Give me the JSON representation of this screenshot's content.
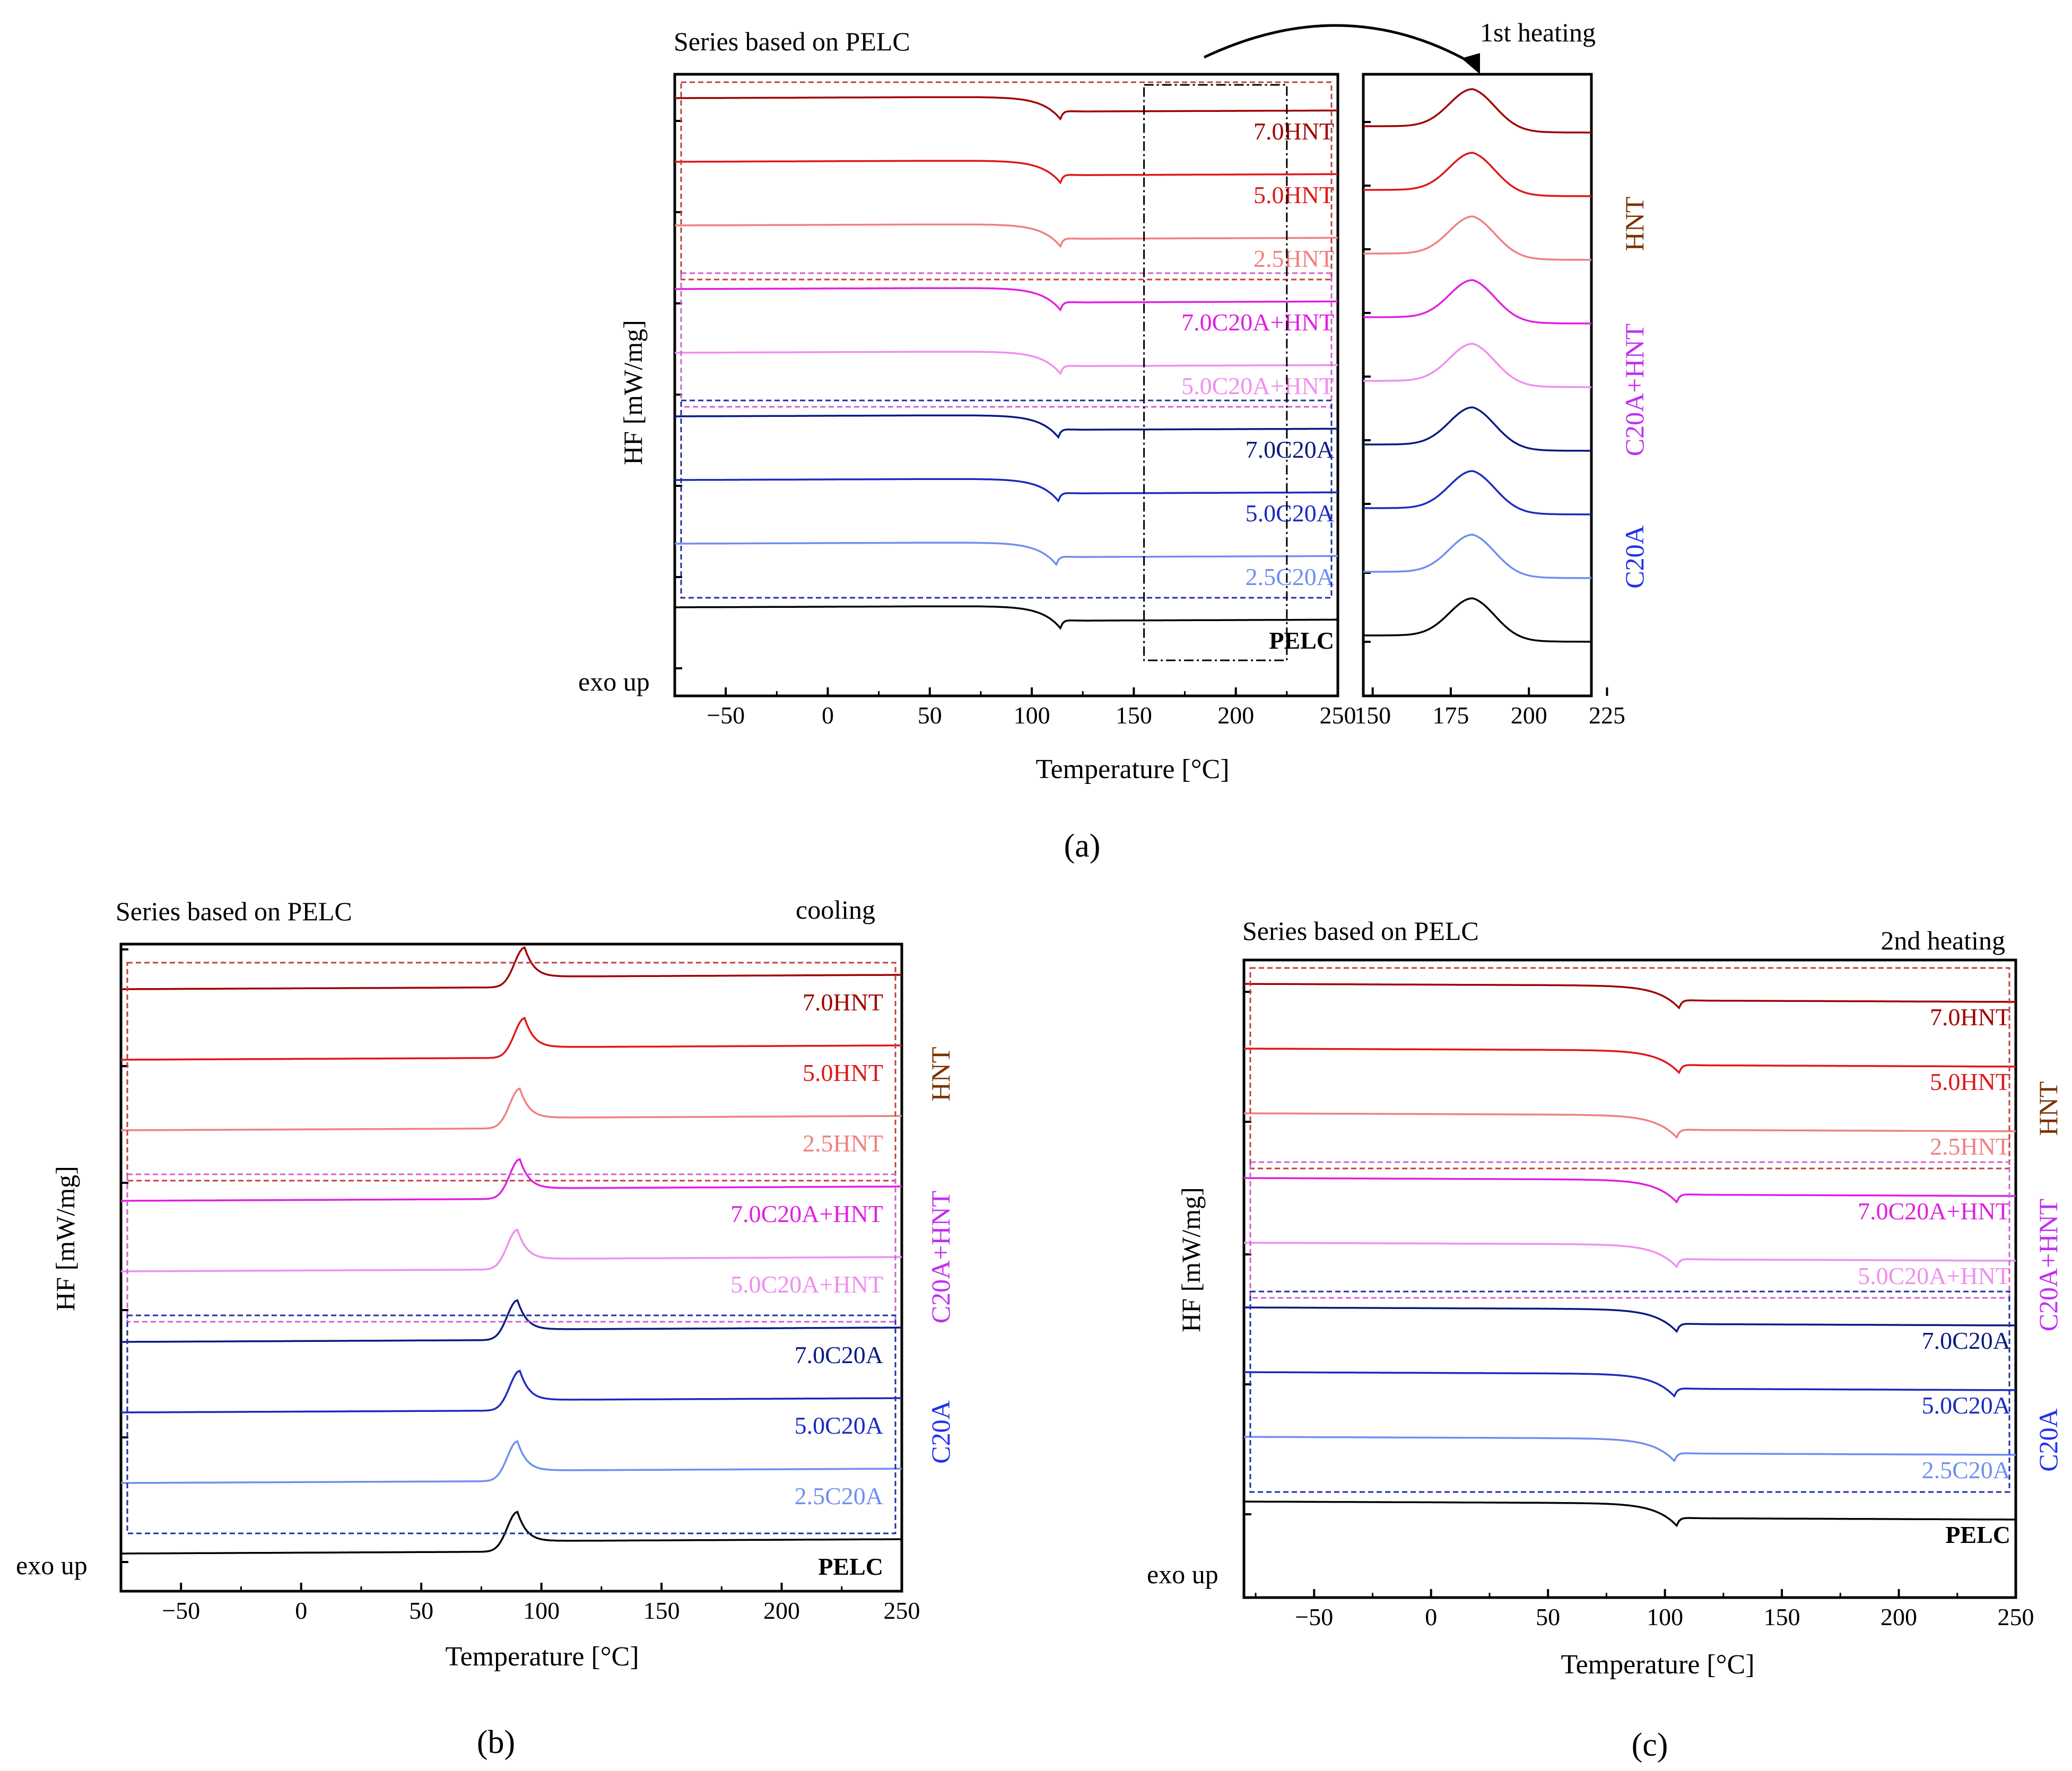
{
  "figure": {
    "panel_labels": [
      "(a)",
      "(b)",
      "(c)"
    ],
    "colors": {
      "axis": "#000000",
      "PELC": "#000000",
      "2.5C20A": "#6f8ff0",
      "5.0C20A": "#1a2bc0",
      "7.0C20A": "#0a1a80",
      "5.0C20A+HNT": "#f08ef0",
      "7.0C20A+HNT": "#e020e0",
      "2.5HNT": "#f08080",
      "5.0HNT": "#e01818",
      "7.0HNT": "#a00000",
      "group_HNT": "#7a3000",
      "group_C20A+HNT": "#c030f0",
      "group_C20A": "#2030f0"
    }
  },
  "chart_data": [
    {
      "id": "a-main",
      "type": "line",
      "title": "Series based on PELC",
      "xlabel": "Temperature [°C]",
      "ylabel": "HF [mW/mg]",
      "corner_label": "exo up",
      "xlim": [
        -75,
        250
      ],
      "xticks": [
        -50,
        0,
        50,
        100,
        150,
        200,
        250
      ],
      "grid": false,
      "series": [
        {
          "name": "7.0HNT",
          "label": "7.0HNT",
          "color": "#a00000",
          "bold": false,
          "peak_T": 114,
          "depth": 0.55,
          "jump": 0.2
        },
        {
          "name": "5.0HNT",
          "label": "5.0HNT",
          "color": "#e01818",
          "bold": false,
          "peak_T": 114,
          "depth": 0.62,
          "jump": 0.22
        },
        {
          "name": "2.5HNT",
          "label": "2.5HNT",
          "color": "#f08080",
          "bold": false,
          "peak_T": 114,
          "depth": 0.6,
          "jump": 0.2
        },
        {
          "name": "7.0C20A+HNT",
          "label": "7.0C20A+HNT",
          "color": "#e020e0",
          "bold": false,
          "peak_T": 114,
          "depth": 0.6,
          "jump": 0.2
        },
        {
          "name": "5.0C20A+HNT",
          "label": "5.0C20A+HNT",
          "color": "#f08ef0",
          "bold": false,
          "peak_T": 114,
          "depth": 0.6,
          "jump": 0.2
        },
        {
          "name": "7.0C20A",
          "label": "7.0C20A",
          "color": "#0a1a80",
          "bold": false,
          "peak_T": 113,
          "depth": 0.55,
          "jump": 0.2
        },
        {
          "name": "5.0C20A",
          "label": "5.0C20A",
          "color": "#1a2bc0",
          "bold": false,
          "peak_T": 113,
          "depth": 0.6,
          "jump": 0.22
        },
        {
          "name": "2.5C20A",
          "label": "2.5C20A",
          "color": "#6f8ff0",
          "bold": false,
          "peak_T": 112,
          "depth": 0.55,
          "jump": 0.2
        },
        {
          "name": "PELC",
          "label": "PELC",
          "color": "#000000",
          "bold": true,
          "peak_T": 114,
          "depth": 0.6,
          "jump": 0.22
        }
      ],
      "zoom_box_x": [
        155,
        225
      ]
    },
    {
      "id": "a-inset",
      "type": "line",
      "title": "1st heating",
      "xlim": [
        147,
        220
      ],
      "xticks": [
        150,
        175,
        200,
        225
      ],
      "peak_type": "exothermic",
      "peak_T": 182,
      "series_order": [
        "7.0HNT",
        "5.0HNT",
        "2.5HNT",
        "7.0C20A+HNT",
        "5.0C20A+HNT",
        "7.0C20A",
        "5.0C20A",
        "2.5C20A",
        "PELC"
      ],
      "group_labels": [
        "HNT",
        "C20A+HNT",
        "C20A"
      ]
    },
    {
      "id": "b",
      "type": "line",
      "title": "Series based on PELC",
      "subtitle": "cooling",
      "xlabel": "Temperature [°C]",
      "ylabel": "HF [mW/mg]",
      "corner_label": "exo up",
      "xlim": [
        -75,
        250
      ],
      "xticks": [
        -50,
        0,
        50,
        100,
        150,
        200,
        250
      ],
      "peak_type": "exothermic",
      "series": [
        {
          "name": "7.0HNT",
          "label": "7.0HNT",
          "color": "#a00000",
          "bold": false,
          "peak_T": 93
        },
        {
          "name": "5.0HNT",
          "label": "5.0HNT",
          "color": "#e01818",
          "bold": false,
          "peak_T": 93
        },
        {
          "name": "2.5HNT",
          "label": "2.5HNT",
          "color": "#f08080",
          "bold": false,
          "peak_T": 91
        },
        {
          "name": "7.0C20A+HNT",
          "label": "7.0C20A+HNT",
          "color": "#e020e0",
          "bold": false,
          "peak_T": 91
        },
        {
          "name": "5.0C20A+HNT",
          "label": "5.0C20A+HNT",
          "color": "#f08ef0",
          "bold": false,
          "peak_T": 90
        },
        {
          "name": "7.0C20A",
          "label": "7.0C20A",
          "color": "#0a1a80",
          "bold": false,
          "peak_T": 90
        },
        {
          "name": "5.0C20A",
          "label": "5.0C20A",
          "color": "#1a2bc0",
          "bold": false,
          "peak_T": 91
        },
        {
          "name": "2.5C20A",
          "label": "2.5C20A",
          "color": "#6f8ff0",
          "bold": false,
          "peak_T": 90
        },
        {
          "name": "PELC",
          "label": "PELC",
          "color": "#000000",
          "bold": true,
          "peak_T": 90
        }
      ],
      "group_labels": [
        "HNT",
        "C20A+HNT",
        "C20A"
      ]
    },
    {
      "id": "c",
      "type": "line",
      "title": "Series based on PELC",
      "subtitle": "2nd heating",
      "xlabel": "Temperature [°C]",
      "ylabel": "HF [mW/mg]",
      "corner_label": "exo up",
      "xlim": [
        -80,
        250
      ],
      "xticks": [
        -50,
        0,
        50,
        100,
        150,
        200,
        250
      ],
      "peak_type": "endothermic",
      "series": [
        {
          "name": "7.0HNT",
          "label": "7.0HNT",
          "color": "#a00000",
          "bold": false,
          "peak_T": 106
        },
        {
          "name": "5.0HNT",
          "label": "5.0HNT",
          "color": "#e01818",
          "bold": false,
          "peak_T": 106
        },
        {
          "name": "2.5HNT",
          "label": "2.5HNT",
          "color": "#f08080",
          "bold": false,
          "peak_T": 105
        },
        {
          "name": "7.0C20A+HNT",
          "label": "7.0C20A+HNT",
          "color": "#e020e0",
          "bold": false,
          "peak_T": 105
        },
        {
          "name": "5.0C20A+HNT",
          "label": "5.0C20A+HNT",
          "color": "#f08ef0",
          "bold": false,
          "peak_T": 105
        },
        {
          "name": "7.0C20A",
          "label": "7.0C20A",
          "color": "#0a1a80",
          "bold": false,
          "peak_T": 105
        },
        {
          "name": "5.0C20A",
          "label": "5.0C20A",
          "color": "#1a2bc0",
          "bold": false,
          "peak_T": 104
        },
        {
          "name": "2.5C20A",
          "label": "2.5C20A",
          "color": "#6f8ff0",
          "bold": false,
          "peak_T": 104
        },
        {
          "name": "PELC",
          "label": "PELC",
          "color": "#000000",
          "bold": true,
          "peak_T": 105
        }
      ],
      "group_labels": [
        "HNT",
        "C20A+HNT",
        "C20A"
      ]
    }
  ]
}
